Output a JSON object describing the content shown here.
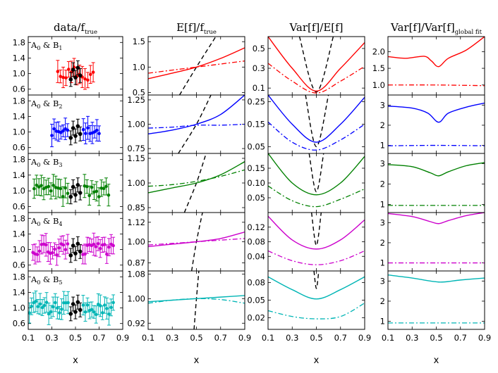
{
  "chart_data": {
    "type": "line",
    "column_titles": [
      {
        "main": "data/f",
        "sub": "true"
      },
      {
        "main": "E[f]/f",
        "sub": "true"
      },
      {
        "main": "Var[f]/E[f]",
        "sub": ""
      },
      {
        "main": "Var[f]/Var[f]",
        "sub": "global fit"
      }
    ],
    "xlabel": "x",
    "xlim": [
      0.1,
      0.9
    ],
    "xticks": [
      0.1,
      0.3,
      0.5,
      0.7,
      0.9
    ],
    "xtick_labels": [
      "0.1",
      "0.3",
      "0.5",
      "0.7",
      "0.9"
    ],
    "rows": [
      {
        "label": {
          "a": "A",
          "as": "0",
          "b": "B",
          "bs": "1"
        },
        "color": "#ff0000",
        "col1": {
          "ylim": [
            0.45,
            1.95
          ],
          "yticks": [
            0.6,
            1.0,
            1.4,
            1.8
          ],
          "yticklabels": [
            "0.6",
            "1.0",
            "1.4",
            "1.8"
          ],
          "n_points": 14,
          "x_range": [
            0.35,
            0.65
          ],
          "noise": 0.18,
          "seed": 11
        },
        "col2": {
          "ylim": [
            0.45,
            1.6
          ],
          "yticks": [
            0.5,
            1.0,
            1.5
          ],
          "yticklabels": [
            "0.5",
            "1.0",
            "1.5"
          ],
          "solid": {
            "x": [
              0.1,
              0.3,
              0.5,
              0.7,
              0.9
            ],
            "y": [
              0.77,
              0.88,
              1.0,
              1.17,
              1.38
            ]
          },
          "dashdot": {
            "x": [
              0.1,
              0.3,
              0.5,
              0.7,
              0.9
            ],
            "y": [
              0.88,
              0.94,
              1.0,
              1.06,
              1.12
            ]
          },
          "dashed": {
            "x": [
              0.36,
              0.5,
              0.66
            ],
            "y": [
              0.45,
              1.0,
              1.6
            ]
          }
        },
        "col3": {
          "ylim": [
            0.03,
            0.62
          ],
          "yticks": [
            0.1,
            0.3,
            0.5
          ],
          "yticklabels": [
            "0.1",
            "0.3",
            "0.5"
          ],
          "solid": {
            "x": [
              0.1,
              0.3,
              0.5,
              0.7,
              0.9
            ],
            "y": [
              0.62,
              0.3,
              0.07,
              0.3,
              0.56
            ]
          },
          "dashdot": {
            "x": [
              0.1,
              0.3,
              0.5,
              0.7,
              0.9
            ],
            "y": [
              0.35,
              0.17,
              0.05,
              0.17,
              0.32
            ]
          },
          "dashed": {
            "x": [
              0.36,
              0.5,
              0.64
            ],
            "y": [
              0.62,
              0.06,
              0.62
            ]
          }
        },
        "col4": {
          "ylim": [
            0.7,
            2.45
          ],
          "yticks": [
            1.0,
            1.5,
            2.0
          ],
          "yticklabels": [
            "1.0",
            "1.5",
            "2.0"
          ],
          "solid": {
            "x": [
              0.1,
              0.25,
              0.4,
              0.46,
              0.52,
              0.6,
              0.75,
              0.9
            ],
            "y": [
              1.85,
              1.8,
              1.86,
              1.72,
              1.55,
              1.8,
              2.05,
              2.45
            ]
          },
          "dashdot": {
            "x": [
              0.1,
              0.5,
              0.9
            ],
            "y": [
              1.0,
              1.0,
              0.98
            ]
          }
        }
      },
      {
        "label": {
          "a": "A",
          "as": "0",
          "b": "B",
          "bs": "2"
        },
        "color": "#0000ff",
        "col1": {
          "ylim": [
            0.45,
            1.95
          ],
          "yticks": [
            0.6,
            1.0,
            1.4,
            1.8
          ],
          "yticklabels": [
            "0.6",
            "1.0",
            "1.4",
            "1.8"
          ],
          "n_points": 22,
          "x_range": [
            0.3,
            0.7
          ],
          "noise": 0.12,
          "seed": 23
        },
        "col2": {
          "ylim": [
            0.7,
            1.3
          ],
          "yticks": [
            0.75,
            1.0,
            1.25
          ],
          "yticklabels": [
            "0.75",
            "1.00",
            "1.25"
          ],
          "solid": {
            "x": [
              0.1,
              0.3,
              0.5,
              0.7,
              0.9
            ],
            "y": [
              0.9,
              0.94,
              1.0,
              1.1,
              1.3
            ]
          },
          "dashdot": {
            "x": [
              0.1,
              0.3,
              0.5,
              0.7,
              0.9
            ],
            "y": [
              0.96,
              0.97,
              0.99,
              0.99,
              1.0
            ]
          },
          "dashed": {
            "x": [
              0.35,
              0.5,
              0.62
            ],
            "y": [
              0.7,
              1.0,
              1.3
            ]
          }
        },
        "col3": {
          "ylim": [
            0.02,
            0.28
          ],
          "yticks": [
            0.05,
            0.15,
            0.25
          ],
          "yticklabels": [
            "0.05",
            "0.15",
            "0.25"
          ],
          "solid": {
            "x": [
              0.1,
              0.3,
              0.5,
              0.7,
              0.9
            ],
            "y": [
              0.28,
              0.15,
              0.07,
              0.15,
              0.27
            ]
          },
          "dashdot": {
            "x": [
              0.1,
              0.3,
              0.5,
              0.7,
              0.9
            ],
            "y": [
              0.16,
              0.07,
              0.035,
              0.08,
              0.15
            ]
          },
          "dashed": {
            "x": [
              0.41,
              0.5,
              0.6
            ],
            "y": [
              0.28,
              0.05,
              0.28
            ]
          }
        },
        "col4": {
          "ylim": [
            0.6,
            3.5
          ],
          "yticks": [
            1,
            2,
            3
          ],
          "yticklabels": [
            "1",
            "2",
            "3"
          ],
          "solid": {
            "x": [
              0.1,
              0.3,
              0.43,
              0.52,
              0.6,
              0.75,
              0.9
            ],
            "y": [
              2.95,
              2.85,
              2.6,
              2.15,
              2.6,
              2.9,
              3.1
            ]
          },
          "dashdot": {
            "x": [
              0.1,
              0.5,
              0.9
            ],
            "y": [
              0.98,
              1.0,
              0.98
            ]
          }
        }
      },
      {
        "label": {
          "a": "A",
          "as": "0",
          "b": "B",
          "bs": "3"
        },
        "color": "#008000",
        "col1": {
          "ylim": [
            0.45,
            1.95
          ],
          "yticks": [
            0.6,
            1.0,
            1.4,
            1.8
          ],
          "yticklabels": [
            "0.6",
            "1.0",
            "1.4",
            "1.8"
          ],
          "n_points": 32,
          "x_range": [
            0.15,
            0.78
          ],
          "noise": 0.15,
          "seed": 37
        },
        "col2": {
          "ylim": [
            0.82,
            1.18
          ],
          "yticks": [
            0.85,
            1.0,
            1.15
          ],
          "yticklabels": [
            "0.85",
            "1.00",
            "1.15"
          ],
          "solid": {
            "x": [
              0.1,
              0.3,
              0.5,
              0.7,
              0.9
            ],
            "y": [
              0.94,
              0.97,
              1.0,
              1.05,
              1.13
            ]
          },
          "dashdot": {
            "x": [
              0.1,
              0.3,
              0.5,
              0.7,
              0.9
            ],
            "y": [
              0.98,
              0.99,
              1.01,
              1.04,
              1.08
            ]
          },
          "dashed": {
            "x": [
              0.4,
              0.5,
              0.58
            ],
            "y": [
              0.82,
              1.0,
              1.18
            ]
          }
        },
        "col3": {
          "ylim": [
            0.0,
            0.2
          ],
          "yticks": [
            0.05,
            0.1,
            0.15
          ],
          "yticklabels": [
            "0.05",
            "0.10",
            "0.15"
          ],
          "solid": {
            "x": [
              0.1,
              0.3,
              0.5,
              0.7,
              0.9
            ],
            "y": [
              0.2,
              0.1,
              0.06,
              0.1,
              0.19
            ]
          },
          "dashdot": {
            "x": [
              0.1,
              0.3,
              0.5,
              0.7,
              0.9
            ],
            "y": [
              0.09,
              0.04,
              0.02,
              0.045,
              0.08
            ]
          },
          "dashed": {
            "x": [
              0.44,
              0.5,
              0.56
            ],
            "y": [
              0.2,
              0.07,
              0.2
            ]
          }
        },
        "col4": {
          "ylim": [
            0.6,
            3.5
          ],
          "yticks": [
            1,
            2,
            3
          ],
          "yticklabels": [
            "1",
            "2",
            "3"
          ],
          "solid": {
            "x": [
              0.1,
              0.3,
              0.45,
              0.52,
              0.6,
              0.75,
              0.9
            ],
            "y": [
              2.95,
              2.85,
              2.55,
              2.4,
              2.6,
              2.9,
              3.05
            ]
          },
          "dashdot": {
            "x": [
              0.1,
              0.5,
              0.9
            ],
            "y": [
              0.95,
              0.95,
              0.95
            ]
          }
        }
      },
      {
        "label": {
          "a": "A",
          "as": "0",
          "b": "B",
          "bs": "4"
        },
        "color": "#cc00cc",
        "col1": {
          "ylim": [
            0.45,
            1.95
          ],
          "yticks": [
            0.6,
            1.0,
            1.4,
            1.8
          ],
          "yticklabels": [
            "0.6",
            "1.0",
            "1.4",
            "1.8"
          ],
          "n_points": 38,
          "x_range": [
            0.14,
            0.82
          ],
          "noise": 0.15,
          "seed": 51
        },
        "col2": {
          "ylim": [
            0.82,
            1.18
          ],
          "yticks": [
            0.87,
            1.0,
            1.12
          ],
          "yticklabels": [
            "0.87",
            "1.00",
            "1.12"
          ],
          "solid": {
            "x": [
              0.1,
              0.3,
              0.5,
              0.7,
              0.9
            ],
            "y": [
              0.97,
              0.985,
              1.0,
              1.02,
              1.06
            ]
          },
          "dashdot": {
            "x": [
              0.1,
              0.3,
              0.5,
              0.7,
              0.9
            ],
            "y": [
              0.98,
              0.99,
              1.0,
              1.01,
              1.02
            ]
          },
          "dashed": {
            "x": [
              0.46,
              0.5,
              0.55
            ],
            "y": [
              0.82,
              1.0,
              1.18
            ]
          }
        },
        "col3": {
          "ylim": [
            0.0,
            0.16
          ],
          "yticks": [
            0.04,
            0.08,
            0.12
          ],
          "yticklabels": [
            "0.04",
            "0.08",
            "0.12"
          ],
          "solid": {
            "x": [
              0.1,
              0.3,
              0.5,
              0.7,
              0.9
            ],
            "y": [
              0.15,
              0.085,
              0.06,
              0.085,
              0.14
            ]
          },
          "dashdot": {
            "x": [
              0.1,
              0.3,
              0.5,
              0.7,
              0.9
            ],
            "y": [
              0.055,
              0.028,
              0.017,
              0.028,
              0.055
            ]
          },
          "dashed": {
            "x": [
              0.46,
              0.5,
              0.54
            ],
            "y": [
              0.16,
              0.07,
              0.16
            ]
          }
        },
        "col4": {
          "ylim": [
            0.6,
            3.5
          ],
          "yticks": [
            1,
            2,
            3
          ],
          "yticklabels": [
            "1",
            "2",
            "3"
          ],
          "solid": {
            "x": [
              0.1,
              0.3,
              0.45,
              0.52,
              0.6,
              0.75,
              0.9
            ],
            "y": [
              3.45,
              3.3,
              3.05,
              2.95,
              3.1,
              3.35,
              3.5
            ]
          },
          "dashdot": {
            "x": [
              0.1,
              0.5,
              0.9
            ],
            "y": [
              1.0,
              1.0,
              1.0
            ]
          }
        }
      },
      {
        "label": {
          "a": "A",
          "as": "0",
          "b": "B",
          "bs": "5"
        },
        "color": "#00b5b5",
        "col1": {
          "ylim": [
            0.45,
            1.95
          ],
          "yticks": [
            0.6,
            1.0,
            1.4,
            1.8
          ],
          "yticklabels": [
            "0.6",
            "1.0",
            "1.4",
            "1.8"
          ],
          "n_points": 40,
          "x_range": [
            0.11,
            0.82
          ],
          "noise": 0.17,
          "seed": 73
        },
        "col2": {
          "ylim": [
            0.9,
            1.09
          ],
          "yticks": [
            0.92,
            1.0,
            1.08
          ],
          "yticklabels": [
            "0.92",
            "1.00",
            "1.08"
          ],
          "solid": {
            "x": [
              0.1,
              0.3,
              0.5,
              0.7,
              0.9
            ],
            "y": [
              0.99,
              0.995,
              1.0,
              1.005,
              1.01
            ]
          },
          "dashdot": {
            "x": [
              0.1,
              0.3,
              0.5,
              0.7,
              0.9
            ],
            "y": [
              0.985,
              0.995,
              1.0,
              0.997,
              0.985
            ]
          },
          "dashed": {
            "x": [
              0.48,
              0.5,
              0.52
            ],
            "y": [
              0.9,
              1.0,
              1.09
            ]
          }
        },
        "col3": {
          "ylim": [
            0.0,
            0.1
          ],
          "yticks": [
            0.02,
            0.05,
            0.08
          ],
          "yticklabels": [
            "0.02",
            "0.05",
            "0.08"
          ],
          "solid": {
            "x": [
              0.1,
              0.3,
              0.5,
              0.7,
              0.9
            ],
            "y": [
              0.09,
              0.068,
              0.052,
              0.068,
              0.09
            ]
          },
          "dashdot": {
            "x": [
              0.1,
              0.3,
              0.5,
              0.7,
              0.9
            ],
            "y": [
              0.032,
              0.022,
              0.018,
              0.022,
              0.045
            ]
          },
          "dashed": {
            "x": [
              0.48,
              0.5,
              0.52
            ],
            "y": [
              0.1,
              0.07,
              0.1
            ]
          }
        },
        "col4": {
          "ylim": [
            0.6,
            3.5
          ],
          "yticks": [
            1,
            2,
            3
          ],
          "yticklabels": [
            "1",
            "2",
            "3"
          ],
          "solid": {
            "x": [
              0.1,
              0.3,
              0.52,
              0.7,
              0.9
            ],
            "y": [
              3.3,
              3.15,
              2.95,
              3.05,
              3.15
            ]
          },
          "dashdot": {
            "x": [
              0.1,
              0.5,
              0.9
            ],
            "y": [
              0.92,
              0.92,
              0.92
            ]
          }
        }
      }
    ],
    "black_points": {
      "x": [
        0.46,
        0.48,
        0.5,
        0.52,
        0.54
      ],
      "y": [
        0.85,
        1.1,
        0.9,
        1.15,
        0.95
      ]
    },
    "line_colors": {
      "dashed_reference": "#000000",
      "axes": "#000000"
    }
  }
}
